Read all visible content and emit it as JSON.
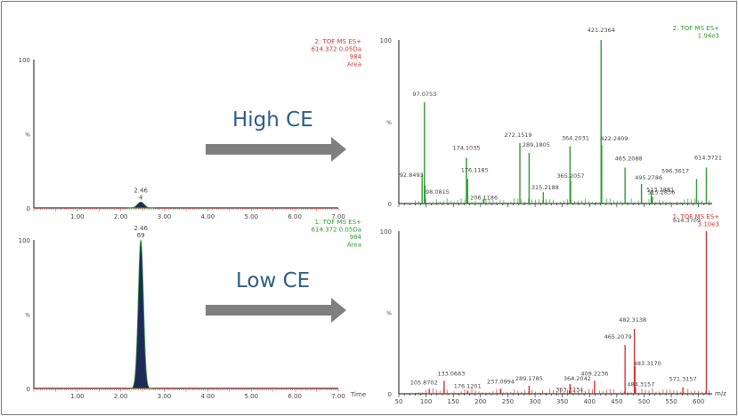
{
  "colors": {
    "axis": "#111111",
    "tick_text": "#444444",
    "red": "#d93030",
    "green": "#2c9a2c",
    "navy": "#1e2a5a",
    "arrow": "#7f7f7f",
    "ce_text": "#2f5c86"
  },
  "labels": {
    "high_ce": "High CE",
    "low_ce": "Low CE"
  },
  "chart_data": [
    {
      "type": "area",
      "id": "chrom_high",
      "header": [
        "2: TOF MS ES+",
        "614.372 0.05Da",
        "984",
        "Area"
      ],
      "header_color": "red",
      "xlim": [
        0,
        7.0
      ],
      "ylim": [
        0,
        100
      ],
      "x_ticks": [
        "1.00",
        "2.00",
        "3.00",
        "4.00",
        "5.00",
        "6.00",
        "7.00"
      ],
      "y_tick_labels": [
        "100",
        "%",
        "0"
      ],
      "xlabel": "",
      "trace_color": "navy",
      "peak_rt": 2.46,
      "peak_height": 4,
      "peak_width": 0.08,
      "peak_labels": [
        "2.46",
        "4"
      ]
    },
    {
      "type": "area",
      "id": "chrom_low",
      "header": [
        "1: TOF MS ES+",
        "614.372 0.05Da",
        "984",
        "Area"
      ],
      "header_color": "green",
      "xlim": [
        0,
        7.0
      ],
      "ylim": [
        0,
        100
      ],
      "x_ticks": [
        "1.00",
        "2.00",
        "3.00",
        "4.00",
        "5.00",
        "6.00",
        "7.00"
      ],
      "y_tick_labels": [
        "100",
        "%",
        "0"
      ],
      "xlabel": "Time",
      "trace_color": "navy",
      "peak_rt": 2.46,
      "peak_height": 100,
      "peak_width": 0.06,
      "peak_labels": [
        "2.46",
        "69"
      ]
    },
    {
      "type": "bar",
      "id": "ms_high",
      "header": [
        "2: TOF MS ES+",
        "1.94e3"
      ],
      "header_color": "green",
      "xlim": [
        50,
        625
      ],
      "ylim": [
        0,
        100
      ],
      "x_ticks": [],
      "y_tick_labels": [
        "100",
        "%",
        "0"
      ],
      "xlabel": "",
      "bar_color": "green",
      "peaks": [
        {
          "mz": 92.8493,
          "rel": 18,
          "label": "92.8493"
        },
        {
          "mz": 98.0815,
          "rel": 11,
          "label": "98.0815"
        },
        {
          "mz": 97.0753,
          "rel": 62,
          "label": "97.0753"
        },
        {
          "mz": 174.1035,
          "rel": 28,
          "label": "174.1035"
        },
        {
          "mz": 176.1185,
          "rel": 15,
          "label": "176.1185"
        },
        {
          "mz": 206.1186,
          "rel": 3,
          "label": "206.1186"
        },
        {
          "mz": 272.1519,
          "rel": 37,
          "label": "272.1519"
        },
        {
          "mz": 289.1805,
          "rel": 31,
          "label": "289.1805"
        },
        {
          "mz": 315.2188,
          "rel": 7,
          "label": "315.2188"
        },
        {
          "mz": 364.2031,
          "rel": 35,
          "label": "364.2031"
        },
        {
          "mz": 365.2057,
          "rel": 14,
          "label": "365.2057"
        },
        {
          "mz": 421.2364,
          "rel": 100,
          "label": "421.2364"
        },
        {
          "mz": 422.2409,
          "rel": 36,
          "label": "422.2409"
        },
        {
          "mz": 465.2088,
          "rel": 22,
          "label": "465.2088"
        },
        {
          "mz": 495.2786,
          "rel": 12,
          "label": "495.2786"
        },
        {
          "mz": 513.2881,
          "rel": 8,
          "label": "513.2881"
        },
        {
          "mz": 515.2836,
          "rel": 4,
          "label": "515.2836"
        },
        {
          "mz": 596.3617,
          "rel": 15,
          "label": "596.3617"
        },
        {
          "mz": 614.3721,
          "rel": 22,
          "label": "614.3721"
        }
      ]
    },
    {
      "type": "bar",
      "id": "ms_low",
      "header": [
        "1: TOF MS ES+",
        "3.10e3"
      ],
      "header_color": "red",
      "xlim": [
        50,
        625
      ],
      "ylim": [
        0,
        100
      ],
      "x_ticks": [
        "50",
        "100",
        "150",
        "200",
        "250",
        "300",
        "350",
        "400",
        "450",
        "500",
        "550",
        "600"
      ],
      "y_tick_labels": [
        "100",
        "%",
        "0"
      ],
      "xlabel": "m/z",
      "bar_color": "red",
      "peaks": [
        {
          "mz": 105.8702,
          "rel": 3,
          "label": "105.8702"
        },
        {
          "mz": 133.0663,
          "rel": 8,
          "label": "133.0663"
        },
        {
          "mz": 176.1201,
          "rel": 2,
          "label": "176.1201"
        },
        {
          "mz": 237.0994,
          "rel": 3,
          "label": "237.0994"
        },
        {
          "mz": 289.1785,
          "rel": 5,
          "label": "289.1785"
        },
        {
          "mz": 363.2234,
          "rel": 2,
          "label": "363.2234"
        },
        {
          "mz": 364.2042,
          "rel": 6,
          "label": "364.2042"
        },
        {
          "mz": 409.2236,
          "rel": 8,
          "label": "409.2236"
        },
        {
          "mz": 465.2079,
          "rel": 30,
          "label": "465.2079"
        },
        {
          "mz": 482.3138,
          "rel": 40,
          "label": "482.3138"
        },
        {
          "mz": 483.317,
          "rel": 17,
          "label": "483.3170"
        },
        {
          "mz": 484.3157,
          "rel": 4,
          "label": "484.3157"
        },
        {
          "mz": 571.3157,
          "rel": 4,
          "label": "571.3157"
        },
        {
          "mz": 614.3709,
          "rel": 100,
          "label": "614.3709"
        }
      ]
    }
  ]
}
